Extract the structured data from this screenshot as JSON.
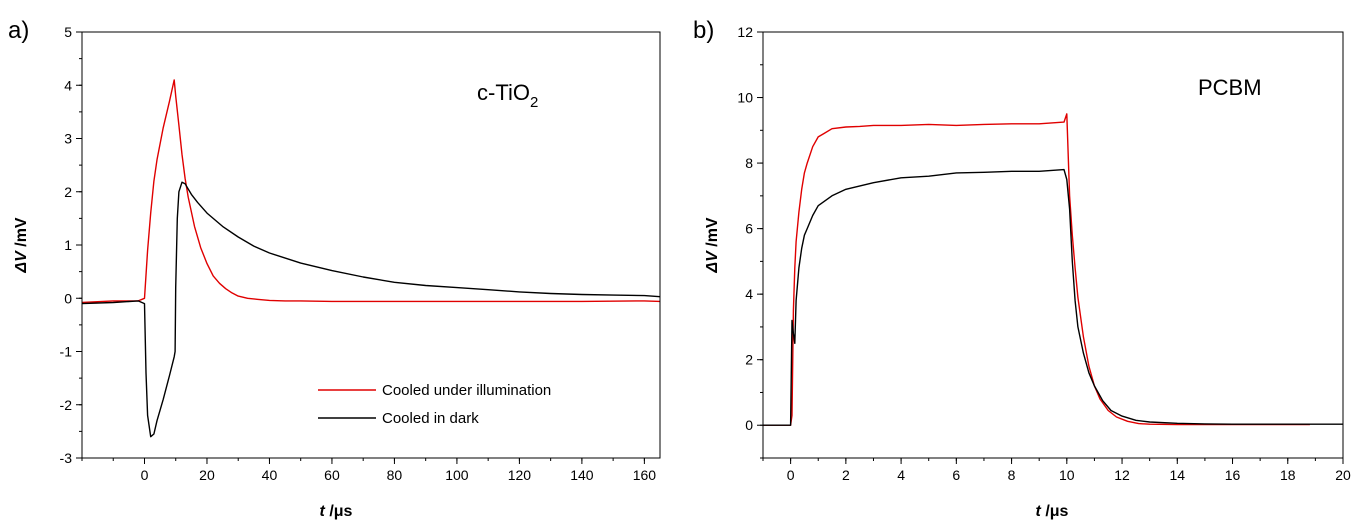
{
  "chart_data": [
    {
      "type": "line",
      "panel_label": "a)",
      "annotation": "c-TiO",
      "annotation_sub": "2",
      "xlabel_italic": "t",
      "xlabel_unit": " /μs",
      "ylabel_italic": "ΔV",
      "ylabel_unit": " /mV",
      "xlim": [
        -20,
        165
      ],
      "ylim": [
        -3,
        5
      ],
      "xticks": [
        0,
        20,
        40,
        60,
        80,
        100,
        120,
        140,
        160
      ],
      "yticks": [
        -3,
        -2,
        -1,
        0,
        1,
        2,
        3,
        4,
        5
      ],
      "legend_position": "lower-right",
      "series": [
        {
          "name": "Cooled under illumination",
          "color": "#e00000",
          "x": [
            -20,
            -10,
            -2,
            0,
            1,
            2,
            3,
            4,
            6,
            8,
            9.5,
            10,
            11,
            12,
            13,
            14,
            16,
            18,
            20,
            22,
            24,
            26,
            28,
            30,
            33,
            36,
            40,
            45,
            50,
            60,
            80,
            100,
            120,
            140,
            160,
            165
          ],
          "y": [
            -0.08,
            -0.05,
            -0.05,
            0,
            0.9,
            1.6,
            2.2,
            2.6,
            3.2,
            3.7,
            4.1,
            3.8,
            3.25,
            2.7,
            2.25,
            1.9,
            1.35,
            0.95,
            0.65,
            0.42,
            0.28,
            0.18,
            0.1,
            0.04,
            0,
            -0.02,
            -0.04,
            -0.05,
            -0.05,
            -0.06,
            -0.06,
            -0.06,
            -0.06,
            -0.06,
            -0.05,
            -0.06
          ]
        },
        {
          "name": "Cooled in dark",
          "color": "#000000",
          "x": [
            -20,
            -10,
            -2,
            0,
            0.5,
            1,
            2,
            3,
            4,
            6,
            8,
            9.5,
            9.8,
            10,
            10.5,
            11,
            12,
            13,
            15,
            17,
            20,
            25,
            30,
            35,
            40,
            50,
            60,
            70,
            80,
            90,
            100,
            110,
            120,
            130,
            140,
            150,
            160,
            165
          ],
          "y": [
            -0.1,
            -0.08,
            -0.05,
            -0.1,
            -1.4,
            -2.2,
            -2.6,
            -2.55,
            -2.3,
            -1.9,
            -1.45,
            -1.1,
            -1.0,
            0.2,
            1.5,
            2.0,
            2.18,
            2.15,
            1.95,
            1.8,
            1.6,
            1.35,
            1.15,
            0.98,
            0.85,
            0.66,
            0.52,
            0.4,
            0.3,
            0.24,
            0.2,
            0.16,
            0.12,
            0.09,
            0.07,
            0.06,
            0.05,
            0.03
          ]
        }
      ]
    },
    {
      "type": "line",
      "panel_label": "b)",
      "annotation": "PCBM",
      "xlabel_italic": "t",
      "xlabel_unit": " /μs",
      "ylabel_italic": "ΔV",
      "ylabel_unit": " /mV",
      "xlim": [
        -1,
        20
      ],
      "ylim": [
        -1,
        12
      ],
      "xticks": [
        0,
        2,
        4,
        6,
        8,
        10,
        12,
        14,
        16,
        18,
        20
      ],
      "yticks": [
        0,
        2,
        4,
        6,
        8,
        10,
        12
      ],
      "series": [
        {
          "name": "red trace",
          "color": "#e00000",
          "x": [
            -1,
            -0.5,
            0,
            0.05,
            0.1,
            0.15,
            0.2,
            0.3,
            0.4,
            0.5,
            0.6,
            0.8,
            1.0,
            1.2,
            1.5,
            2.0,
            2.5,
            3,
            4,
            5,
            6,
            7,
            8,
            9,
            9.9,
            10.0,
            10.1,
            10.2,
            10.3,
            10.4,
            10.6,
            10.8,
            11.0,
            11.2,
            11.5,
            11.8,
            12.2,
            12.6,
            13,
            14,
            15,
            16,
            17,
            18,
            18.8
          ],
          "y": [
            0,
            0,
            0,
            0.3,
            3.5,
            4.8,
            5.6,
            6.5,
            7.2,
            7.7,
            8.0,
            8.5,
            8.8,
            8.9,
            9.05,
            9.1,
            9.12,
            9.15,
            9.15,
            9.18,
            9.15,
            9.18,
            9.2,
            9.2,
            9.25,
            9.5,
            7.0,
            5.8,
            4.8,
            3.9,
            2.7,
            1.8,
            1.2,
            0.8,
            0.45,
            0.25,
            0.12,
            0.05,
            0.03,
            0.02,
            0.02,
            0.02,
            0.02,
            0.02,
            0.02
          ]
        },
        {
          "name": "black trace",
          "color": "#000000",
          "x": [
            -1,
            -0.5,
            0,
            0.05,
            0.1,
            0.15,
            0.2,
            0.3,
            0.4,
            0.5,
            0.6,
            0.8,
            1.0,
            1.5,
            2.0,
            3,
            4,
            5,
            6,
            7,
            8,
            9,
            9.9,
            10.0,
            10.1,
            10.2,
            10.3,
            10.4,
            10.6,
            10.8,
            11.0,
            11.3,
            11.6,
            12.0,
            12.5,
            13,
            14,
            15,
            16,
            18,
            20
          ],
          "y": [
            0,
            0,
            0,
            3.2,
            2.8,
            2.5,
            3.8,
            4.8,
            5.4,
            5.8,
            6.0,
            6.4,
            6.7,
            7.0,
            7.2,
            7.4,
            7.55,
            7.6,
            7.7,
            7.72,
            7.75,
            7.75,
            7.8,
            7.5,
            6.6,
            5.0,
            3.8,
            3.0,
            2.2,
            1.6,
            1.2,
            0.75,
            0.45,
            0.28,
            0.15,
            0.1,
            0.06,
            0.04,
            0.03,
            0.03,
            0.03
          ]
        }
      ]
    }
  ]
}
